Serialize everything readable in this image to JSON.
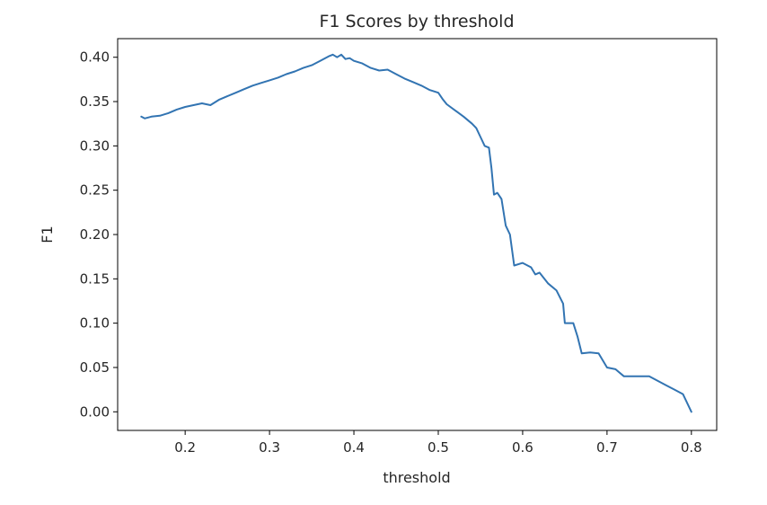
{
  "chart_data": {
    "type": "line",
    "title": "F1 Scores by threshold",
    "xlabel": "threshold",
    "ylabel": "F1",
    "xlim": [
      0.12,
      0.83
    ],
    "ylim": [
      -0.021,
      0.421
    ],
    "x_ticks": [
      0.2,
      0.3,
      0.4,
      0.5,
      0.6,
      0.7,
      0.8
    ],
    "x_tick_labels": [
      "0.2",
      "0.3",
      "0.4",
      "0.5",
      "0.6",
      "0.7",
      "0.8"
    ],
    "y_ticks": [
      0.0,
      0.05,
      0.1,
      0.15,
      0.2,
      0.25,
      0.3,
      0.35,
      0.4
    ],
    "y_tick_labels": [
      "0.00",
      "0.05",
      "0.10",
      "0.15",
      "0.20",
      "0.25",
      "0.30",
      "0.35",
      "0.40"
    ],
    "grid": false,
    "legend": "none",
    "series": [
      {
        "color": "#3274b2",
        "x": [
          0.148,
          0.152,
          0.16,
          0.17,
          0.18,
          0.19,
          0.2,
          0.21,
          0.22,
          0.23,
          0.24,
          0.25,
          0.26,
          0.27,
          0.28,
          0.29,
          0.3,
          0.31,
          0.32,
          0.33,
          0.34,
          0.35,
          0.36,
          0.37,
          0.375,
          0.38,
          0.385,
          0.39,
          0.395,
          0.4,
          0.41,
          0.42,
          0.43,
          0.44,
          0.45,
          0.46,
          0.47,
          0.48,
          0.49,
          0.5,
          0.505,
          0.51,
          0.52,
          0.53,
          0.54,
          0.545,
          0.55,
          0.555,
          0.56,
          0.563,
          0.566,
          0.57,
          0.575,
          0.58,
          0.585,
          0.59,
          0.6,
          0.61,
          0.615,
          0.62,
          0.63,
          0.64,
          0.648,
          0.65,
          0.66,
          0.665,
          0.67,
          0.68,
          0.69,
          0.7,
          0.71,
          0.72,
          0.73,
          0.74,
          0.75,
          0.76,
          0.77,
          0.78,
          0.79,
          0.8
        ],
        "y": [
          0.333,
          0.331,
          0.333,
          0.334,
          0.337,
          0.341,
          0.344,
          0.346,
          0.348,
          0.346,
          0.352,
          0.356,
          0.36,
          0.364,
          0.368,
          0.371,
          0.374,
          0.377,
          0.381,
          0.384,
          0.388,
          0.391,
          0.396,
          0.401,
          0.403,
          0.4,
          0.403,
          0.398,
          0.399,
          0.396,
          0.393,
          0.388,
          0.385,
          0.386,
          0.381,
          0.376,
          0.372,
          0.368,
          0.363,
          0.36,
          0.353,
          0.347,
          0.34,
          0.333,
          0.325,
          0.32,
          0.31,
          0.3,
          0.298,
          0.275,
          0.245,
          0.247,
          0.24,
          0.21,
          0.2,
          0.165,
          0.168,
          0.163,
          0.155,
          0.157,
          0.145,
          0.137,
          0.122,
          0.1,
          0.1,
          0.085,
          0.066,
          0.067,
          0.066,
          0.05,
          0.048,
          0.04,
          0.04,
          0.04,
          0.04,
          0.035,
          0.03,
          0.025,
          0.02,
          0.0
        ]
      }
    ]
  }
}
